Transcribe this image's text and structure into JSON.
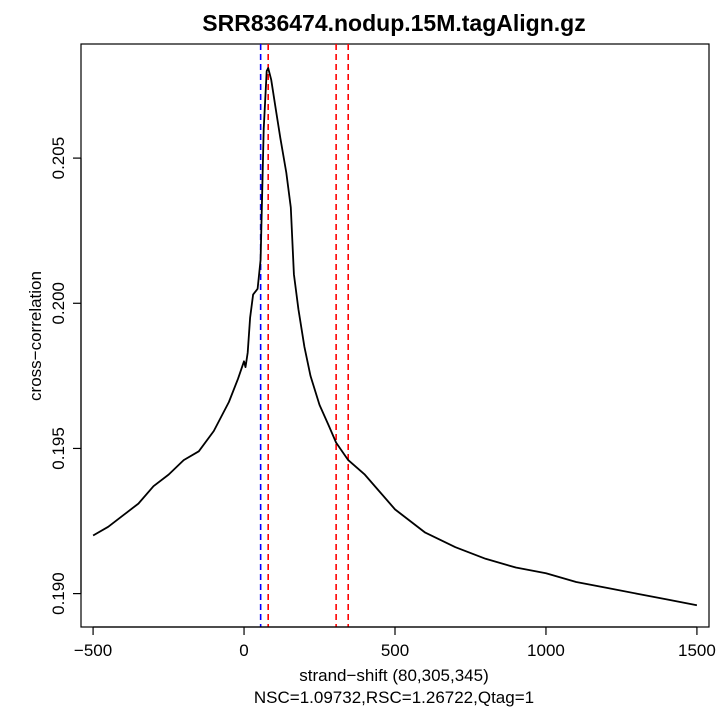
{
  "chart_data": {
    "type": "line",
    "title": "SRR836474.nodup.15M.tagAlign.gz",
    "xlabel": "strand−shift (80,305,345)",
    "subtitle": "NSC=1.09732,RSC=1.26722,Qtag=1",
    "ylabel": "cross−correlation",
    "xlim": [
      -540,
      1540
    ],
    "ylim": [
      0.18885,
      0.20893
    ],
    "x_ticks": [
      {
        "value": -500,
        "label": "−500"
      },
      {
        "value": 0,
        "label": "0"
      },
      {
        "value": 500,
        "label": "500"
      },
      {
        "value": 1000,
        "label": "1000"
      },
      {
        "value": 1500,
        "label": "1500"
      }
    ],
    "y_ticks": [
      {
        "value": 0.19,
        "label": "0.190"
      },
      {
        "value": 0.195,
        "label": "0.195"
      },
      {
        "value": 0.2,
        "label": "0.200"
      },
      {
        "value": 0.205,
        "label": "0.205"
      }
    ],
    "grid": false,
    "vlines": [
      {
        "x": 55,
        "color": "#0000ff"
      },
      {
        "x": 80,
        "color": "#ff0000"
      },
      {
        "x": 305,
        "color": "#ff0000"
      },
      {
        "x": 345,
        "color": "#ff0000"
      }
    ],
    "series": [
      {
        "color": "#000000",
        "points": [
          [
            -500,
            0.192
          ],
          [
            -450,
            0.1923
          ],
          [
            -400,
            0.1927
          ],
          [
            -350,
            0.1931
          ],
          [
            -300,
            0.1937
          ],
          [
            -250,
            0.1941
          ],
          [
            -200,
            0.1946
          ],
          [
            -150,
            0.1949
          ],
          [
            -100,
            0.1956
          ],
          [
            -50,
            0.1966
          ],
          [
            -20,
            0.1974
          ],
          [
            0,
            0.198
          ],
          [
            5,
            0.1978
          ],
          [
            12,
            0.1983
          ],
          [
            20,
            0.1995
          ],
          [
            30,
            0.2003
          ],
          [
            45,
            0.2005
          ],
          [
            55,
            0.2015
          ],
          [
            65,
            0.206
          ],
          [
            75,
            0.208
          ],
          [
            80,
            0.2081
          ],
          [
            90,
            0.2077
          ],
          [
            105,
            0.2067
          ],
          [
            120,
            0.2057
          ],
          [
            140,
            0.2045
          ],
          [
            155,
            0.2033
          ],
          [
            165,
            0.201
          ],
          [
            180,
            0.1998
          ],
          [
            200,
            0.1985
          ],
          [
            220,
            0.1975
          ],
          [
            250,
            0.1965
          ],
          [
            280,
            0.1958
          ],
          [
            305,
            0.1952
          ],
          [
            345,
            0.1946
          ],
          [
            400,
            0.1941
          ],
          [
            450,
            0.1935
          ],
          [
            500,
            0.1929
          ],
          [
            550,
            0.1925
          ],
          [
            600,
            0.1921
          ],
          [
            700,
            0.1916
          ],
          [
            800,
            0.1912
          ],
          [
            900,
            0.1909
          ],
          [
            1000,
            0.1907
          ],
          [
            1100,
            0.1904
          ],
          [
            1200,
            0.1902
          ],
          [
            1300,
            0.19
          ],
          [
            1400,
            0.1898
          ],
          [
            1500,
            0.1896
          ]
        ]
      }
    ]
  }
}
